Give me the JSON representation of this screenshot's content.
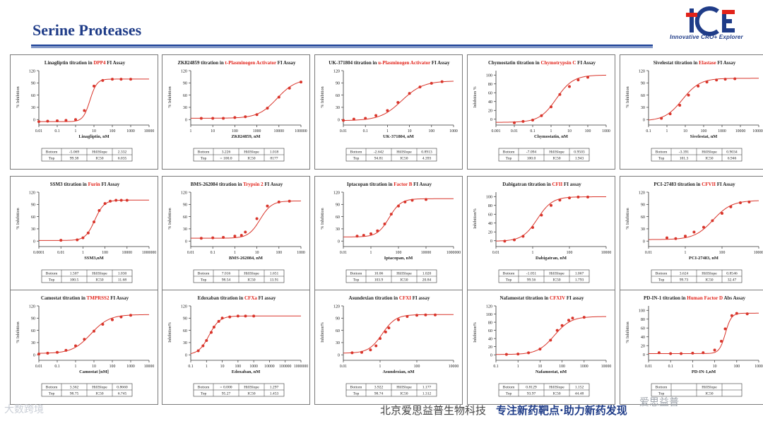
{
  "page": {
    "title": "Serine Proteases",
    "logo_text": "Innovative CRO+ Explorer",
    "footer_company": "北京爱思益普生物科技",
    "footer_slogan": "专注新药靶点·助力新药发现",
    "watermark_left": "大数跨境",
    "watermark_right": "爱思益普"
  },
  "colors": {
    "curve": "#d9352b",
    "highlight": "#e2231a",
    "title_blue": "#1f3c88"
  },
  "chart_data": [
    {
      "type": "scatter",
      "title_pre": "Linagliptin titration in ",
      "title_hl": "DPP4",
      "title_post": " FI Assay",
      "xlabel": "Linagliptin, nM",
      "ylabel": "% Inhibition",
      "x_ticks": [
        "0.01",
        "0.1",
        "1",
        "10",
        "100",
        "1000",
        "10000"
      ],
      "x_range": [
        0.01,
        10000
      ],
      "y_ticks": [
        0,
        30,
        60,
        90,
        120
      ],
      "y_range": [
        -10,
        120
      ],
      "fit": {
        "bottom": -5.069,
        "top": 99.38,
        "ic50": 6.035,
        "hill": 2.332
      },
      "points": [
        [
          0.01,
          -5
        ],
        [
          0.03,
          -4
        ],
        [
          0.1,
          -3
        ],
        [
          0.3,
          -2
        ],
        [
          1,
          0
        ],
        [
          3,
          22
        ],
        [
          10,
          82
        ],
        [
          30,
          96
        ],
        [
          100,
          99
        ],
        [
          300,
          99
        ],
        [
          1000,
          99
        ]
      ],
      "table": {
        "Bottom": "-5.069",
        "Top": "99.38",
        "HillSlope": "2.332",
        "IC50": "6.035"
      }
    },
    {
      "type": "scatter",
      "title_pre": "ZK824859 titration in ",
      "title_hl": "t-Plasminogen Activator",
      "title_post": " FI Assay",
      "xlabel": "ZK824859, nM",
      "ylabel": "% Inhibition",
      "x_ticks": [
        "1",
        "10",
        "100",
        "1000",
        "10000",
        "100000"
      ],
      "x_range": [
        1,
        100000
      ],
      "y_ticks": [
        0,
        30,
        60,
        90,
        120
      ],
      "y_range": [
        -10,
        120
      ],
      "fit": {
        "bottom": 3.226,
        "top": 100,
        "ic50": 8177,
        "hill": 1.018
      },
      "points": [
        [
          3,
          3
        ],
        [
          10,
          3
        ],
        [
          30,
          3
        ],
        [
          100,
          5
        ],
        [
          300,
          7
        ],
        [
          1000,
          12
        ],
        [
          3000,
          28
        ],
        [
          10000,
          55
        ],
        [
          30000,
          77
        ],
        [
          100000,
          92
        ]
      ],
      "table": {
        "Bottom": "3.226",
        "Top": "= 100.0",
        "HillSlope": "1.018",
        "IC50": "8177"
      }
    },
    {
      "type": "scatter",
      "title_pre": "UK-371804 titration in ",
      "title_hl": "u-Plasminogen Activator",
      "title_post": " FI Assay",
      "xlabel": "UK-371804, nM",
      "ylabel": "% Inhibition",
      "x_ticks": [
        "0.01",
        "0.1",
        "1",
        "10",
        "100",
        "1000"
      ],
      "x_range": [
        0.01,
        1000
      ],
      "y_ticks": [
        0,
        30,
        60,
        90,
        120
      ],
      "y_range": [
        -10,
        120
      ],
      "fit": {
        "bottom": -2.642,
        "top": 94.81,
        "ic50": 4.393,
        "hill": 0.8913
      },
      "points": [
        [
          0.01,
          -2
        ],
        [
          0.03,
          1
        ],
        [
          0.1,
          3
        ],
        [
          0.3,
          10
        ],
        [
          1,
          22
        ],
        [
          3,
          42
        ],
        [
          10,
          64
        ],
        [
          30,
          80
        ],
        [
          100,
          89
        ],
        [
          300,
          93
        ]
      ],
      "table": {
        "Bottom": "-2.642",
        "Top": "94.81",
        "HillSlope": "0.8913",
        "IC50": "4.393"
      }
    },
    {
      "type": "scatter",
      "title_pre": "Chymostatin titration in ",
      "title_hl": "Chymotrypsin C",
      "title_post": " FI Assay",
      "xlabel": "Chymostatin, nM",
      "ylabel": "Inhibition %",
      "x_ticks": [
        "0.001",
        "0.01",
        "0.1",
        "1",
        "10",
        "100",
        "1000"
      ],
      "x_range": [
        0.001,
        1000
      ],
      "y_ticks": [
        0,
        20,
        40,
        60,
        80,
        100
      ],
      "y_range": [
        -10,
        110
      ],
      "fit": {
        "bottom": -7.094,
        "top": 100,
        "ic50": 1.943,
        "hill": 0.9503
      },
      "points": [
        [
          0.01,
          -8
        ],
        [
          0.03,
          -5
        ],
        [
          0.1,
          -2
        ],
        [
          0.3,
          8
        ],
        [
          1,
          28
        ],
        [
          3,
          56
        ],
        [
          10,
          74
        ],
        [
          30,
          89
        ],
        [
          100,
          95
        ]
      ],
      "table": {
        "Bottom": "-7.094",
        "Top": "100.0",
        "HillSlope": "0.9503",
        "IC50": "1.943"
      }
    },
    {
      "type": "scatter",
      "title_pre": "Sivelestat titration in ",
      "title_hl": "Elastase",
      "title_post": " FI Assay",
      "xlabel": "Sivelestat, nM",
      "ylabel": "% Inhibition",
      "x_ticks": [
        "0.1",
        "1",
        "10",
        "100",
        "1000",
        "10000",
        "100000"
      ],
      "x_range": [
        0.1,
        100000
      ],
      "y_ticks": [
        0,
        30,
        60,
        90,
        120
      ],
      "y_range": [
        -10,
        120
      ],
      "fit": {
        "bottom": -3.391,
        "top": 101.3,
        "ic50": 6.946,
        "hill": 0.9034
      },
      "points": [
        [
          0.5,
          3
        ],
        [
          1.5,
          14
        ],
        [
          5,
          35
        ],
        [
          15,
          60
        ],
        [
          50,
          82
        ],
        [
          150,
          92
        ],
        [
          500,
          97
        ],
        [
          1500,
          99
        ],
        [
          5000,
          100
        ]
      ],
      "table": {
        "Bottom": "-3.391",
        "Top": "101.3",
        "HillSlope": "0.9034",
        "IC50": "6.946"
      }
    },
    {
      "type": "scatter",
      "title_pre": "SSM3 titration in ",
      "title_hl": "Furin",
      "title_post": " FI Assay",
      "xlabel": "SSM3,nM",
      "ylabel": "% Inhibition",
      "x_ticks": [
        "0.0001",
        "0.01",
        "1",
        "100",
        "10000",
        "1000000"
      ],
      "x_range": [
        0.0001,
        1000000
      ],
      "y_ticks": [
        0,
        30,
        60,
        90,
        120
      ],
      "y_range": [
        -10,
        120
      ],
      "fit": {
        "bottom": 1.507,
        "top": 100.5,
        "ic50": 11.68,
        "hill": 1.03
      },
      "points": [
        [
          0.01,
          2
        ],
        [
          0.3,
          3
        ],
        [
          1,
          8
        ],
        [
          3,
          20
        ],
        [
          10,
          47
        ],
        [
          30,
          75
        ],
        [
          100,
          92
        ],
        [
          300,
          98
        ],
        [
          1000,
          100
        ],
        [
          3000,
          100
        ],
        [
          10000,
          100
        ]
      ],
      "table": {
        "Bottom": "1.507",
        "Top": "100.5",
        "HillSlope": "1.030",
        "IC50": "11.68"
      }
    },
    {
      "type": "scatter",
      "title_pre": "BMS-262084 titration in ",
      "title_hl": "Trypsin 2",
      "title_post": " FI Assay",
      "xlabel": "BMS-262084, nM",
      "ylabel": "% Inhibition",
      "x_ticks": [
        "0.01",
        "0.1",
        "1",
        "10",
        "100",
        "1000"
      ],
      "x_range": [
        0.01,
        1000
      ],
      "y_ticks": [
        0,
        30,
        60,
        90,
        120
      ],
      "y_range": [
        -10,
        120
      ],
      "fit": {
        "bottom": 7.016,
        "top": 98.54,
        "ic50": 13.91,
        "hill": 1.651
      },
      "points": [
        [
          0.03,
          7
        ],
        [
          0.1,
          8
        ],
        [
          0.3,
          9
        ],
        [
          1,
          12
        ],
        [
          2,
          14
        ],
        [
          3,
          22
        ],
        [
          10,
          55
        ],
        [
          30,
          86
        ],
        [
          100,
          96
        ],
        [
          300,
          98
        ]
      ],
      "table": {
        "Bottom": "7.016",
        "Top": "98.54",
        "HillSlope": "1.651",
        "IC50": "13.91"
      }
    },
    {
      "type": "scatter",
      "title_pre": "Iptacopan titration in ",
      "title_hl": "Factor B",
      "title_post": " FI Assay",
      "xlabel": "Iptacopan, nM",
      "ylabel": "% Inhibition",
      "x_ticks": [
        "0.01",
        "1",
        "100",
        "10000",
        "1000000"
      ],
      "x_range": [
        0.01,
        1000000
      ],
      "y_ticks": [
        0,
        30,
        60,
        90,
        120
      ],
      "y_range": [
        -10,
        120
      ],
      "fit": {
        "bottom": 10.06,
        "top": 103.9,
        "ic50": 20.84,
        "hill": 1.02
      },
      "points": [
        [
          0.1,
          12
        ],
        [
          0.3,
          14
        ],
        [
          1,
          18
        ],
        [
          3,
          25
        ],
        [
          10,
          42
        ],
        [
          30,
          66
        ],
        [
          100,
          86
        ],
        [
          300,
          96
        ],
        [
          1000,
          100
        ],
        [
          10000,
          102
        ]
      ],
      "table": {
        "Bottom": "10.06",
        "Top": "103.9",
        "HillSlope": "1.020",
        "IC50": "20.84"
      }
    },
    {
      "type": "scatter",
      "title_pre": "Dabigatran titration in ",
      "title_hl": "CFII",
      "title_post": " FI assay",
      "xlabel": "Dabigatran, nM",
      "ylabel": "Inhibition%",
      "x_ticks": [
        "0.01",
        "1",
        "100",
        "10000"
      ],
      "x_range": [
        0.01,
        10000
      ],
      "y_ticks": [
        0,
        20,
        40,
        60,
        80,
        100
      ],
      "y_range": [
        -10,
        110
      ],
      "fit": {
        "bottom": -1.051,
        "top": 99.56,
        "ic50": 1.793,
        "hill": 1.067
      },
      "points": [
        [
          0.03,
          -1
        ],
        [
          0.1,
          2
        ],
        [
          0.3,
          10
        ],
        [
          1,
          30
        ],
        [
          3,
          58
        ],
        [
          10,
          80
        ],
        [
          30,
          92
        ],
        [
          100,
          97
        ],
        [
          300,
          99
        ],
        [
          1000,
          99
        ]
      ],
      "table": {
        "Bottom": "-1.051",
        "Top": "99.56",
        "HillSlope": "1.067",
        "IC50": "1.793"
      }
    },
    {
      "type": "scatter",
      "title_pre": "PCI-27483 titration in ",
      "title_hl": "CFVII",
      "title_post": " FI Assay",
      "xlabel": "PCI-27483, nM",
      "ylabel": "% Inhibition",
      "x_ticks": [
        "0.01",
        "1",
        "100",
        "10000"
      ],
      "x_range": [
        0.01,
        10000
      ],
      "y_ticks": [
        0,
        30,
        60,
        90,
        120
      ],
      "y_range": [
        -10,
        120
      ],
      "fit": {
        "bottom": 3.624,
        "top": 99.73,
        "ic50": 32.47,
        "hill": 0.8546
      },
      "points": [
        [
          0.1,
          8
        ],
        [
          0.3,
          6
        ],
        [
          1,
          12
        ],
        [
          3,
          22
        ],
        [
          10,
          34
        ],
        [
          30,
          50
        ],
        [
          100,
          68
        ],
        [
          300,
          84
        ],
        [
          1000,
          94
        ],
        [
          3000,
          96
        ]
      ],
      "table": {
        "Bottom": "3.624",
        "Top": "99.73",
        "HillSlope": "0.8546",
        "IC50": "32.47"
      }
    },
    {
      "type": "scatter",
      "title_pre": "Camostat titration in ",
      "title_hl": "TMPRSS2",
      "title_post": " FI Assay",
      "xlabel": "Camostat [nM]",
      "ylabel": "% Inhibition",
      "x_ticks": [
        "0.01",
        "0.1",
        "1",
        "10",
        "100",
        "1000",
        "10000"
      ],
      "x_range": [
        0.01,
        10000
      ],
      "y_ticks": [
        0,
        30,
        60,
        90,
        120
      ],
      "y_range": [
        -10,
        120
      ],
      "fit": {
        "bottom": 3.362,
        "top": 98.75,
        "ic50": 6.745,
        "hill": 0.866
      },
      "points": [
        [
          0.01,
          2
        ],
        [
          0.03,
          4
        ],
        [
          0.1,
          6
        ],
        [
          0.3,
          11
        ],
        [
          1,
          22
        ],
        [
          3,
          38
        ],
        [
          10,
          58
        ],
        [
          30,
          75
        ],
        [
          100,
          86
        ],
        [
          300,
          93
        ],
        [
          1000,
          97
        ]
      ],
      "table": {
        "Bottom": "3.362",
        "Top": "98.75",
        "HillSlope": "0.8660",
        "IC50": "6.745"
      }
    },
    {
      "type": "scatter",
      "title_pre": "Edoxaban titration in ",
      "title_hl": "CFXa",
      "title_post": " FI assay",
      "xlabel": "Edoxaban, nM",
      "ylabel": "Inhibition%",
      "x_ticks": [
        "0.1",
        "1",
        "10",
        "100",
        "1000",
        "10000",
        "100000",
        "1000000"
      ],
      "x_range": [
        0.1,
        1000000
      ],
      "y_ticks": [
        0,
        30,
        60,
        90,
        120
      ],
      "y_range": [
        -10,
        120
      ],
      "fit": {
        "bottom": 0,
        "top": 95.27,
        "ic50": 1.453,
        "hill": 1.297
      },
      "points": [
        [
          0.3,
          10
        ],
        [
          0.6,
          22
        ],
        [
          1,
          35
        ],
        [
          2,
          55
        ],
        [
          3,
          68
        ],
        [
          6,
          82
        ],
        [
          10,
          90
        ],
        [
          30,
          93
        ],
        [
          100,
          95
        ],
        [
          300,
          95
        ],
        [
          1000,
          95
        ]
      ],
      "table": {
        "Bottom": "= 0.000",
        "Top": "95.27",
        "HillSlope": "1.297",
        "IC50": "1.453"
      }
    },
    {
      "type": "scatter",
      "title_pre": "Asundexian titration in ",
      "title_hl": "CFXI",
      "title_post": " FI assay",
      "xlabel": "Asundexian, nM",
      "ylabel": "Inhibition%",
      "x_ticks": [
        "0.01",
        "1",
        "100",
        "10000"
      ],
      "x_range": [
        0.01,
        10000
      ],
      "y_ticks": [
        0,
        30,
        60,
        90,
        120
      ],
      "y_range": [
        -10,
        120
      ],
      "fit": {
        "bottom": 3.922,
        "top": 98.74,
        "ic50": 1.312,
        "hill": 1.177
      },
      "points": [
        [
          0.03,
          5
        ],
        [
          0.1,
          6
        ],
        [
          0.3,
          12
        ],
        [
          0.6,
          22
        ],
        [
          1,
          40
        ],
        [
          2,
          56
        ],
        [
          3,
          66
        ],
        [
          10,
          86
        ],
        [
          30,
          94
        ],
        [
          100,
          97
        ],
        [
          300,
          98
        ],
        [
          1000,
          98
        ]
      ],
      "table": {
        "Bottom": "3.922",
        "Top": "98.74",
        "HillSlope": "1.177",
        "IC50": "1.312"
      }
    },
    {
      "type": "scatter",
      "title_pre": "Nafamostat titration in ",
      "title_hl": "CFXIV",
      "title_post": " FI assay",
      "xlabel": "Nafamostat, nM",
      "ylabel": "Inhibition%",
      "x_ticks": [
        "0.1",
        "1",
        "10",
        "100",
        "1000",
        "10000"
      ],
      "x_range": [
        0.1,
        10000
      ],
      "y_ticks": [
        0,
        20,
        40,
        60,
        80,
        100,
        120
      ],
      "y_range": [
        -10,
        120
      ],
      "fit": {
        "bottom": 0.8129,
        "top": 93.97,
        "ic50": 44.48,
        "hill": 1.152
      },
      "points": [
        [
          0.3,
          1
        ],
        [
          1,
          2
        ],
        [
          3,
          5
        ],
        [
          10,
          14
        ],
        [
          30,
          36
        ],
        [
          60,
          60
        ],
        [
          100,
          72
        ],
        [
          200,
          85
        ],
        [
          300,
          90
        ],
        [
          1000,
          92
        ]
      ],
      "table": {
        "Bottom": "0.8129",
        "Top": "93.97",
        "HillSlope": "1.152",
        "IC50": "44.48"
      }
    },
    {
      "type": "scatter",
      "title_pre": "PD-IN-1 titration in ",
      "title_hl": "Human Factor D",
      "title_post": " Abs Assay",
      "xlabel": "PD-IN-1,nM",
      "ylabel": "% Inhibition",
      "x_ticks": [
        "0.01",
        "0.1",
        "1",
        "10",
        "100",
        "1000"
      ],
      "x_range": [
        0.01,
        1000
      ],
      "y_ticks": [
        0,
        20,
        40,
        60,
        80,
        100
      ],
      "y_range": [
        -10,
        110
      ],
      "fit": {
        "bottom": 2.1,
        "top": 93.5,
        "ic50": 30.5,
        "hill": 3.2
      },
      "points": [
        [
          0.03,
          4
        ],
        [
          0.1,
          2
        ],
        [
          0.3,
          2
        ],
        [
          1,
          3
        ],
        [
          3,
          4
        ],
        [
          10,
          10
        ],
        [
          20,
          30
        ],
        [
          30,
          58
        ],
        [
          60,
          88
        ],
        [
          100,
          93
        ],
        [
          300,
          92
        ]
      ],
      "table": {
        "Bottom": "",
        "Top": "",
        "HillSlope": "",
        "IC50": ""
      }
    }
  ]
}
